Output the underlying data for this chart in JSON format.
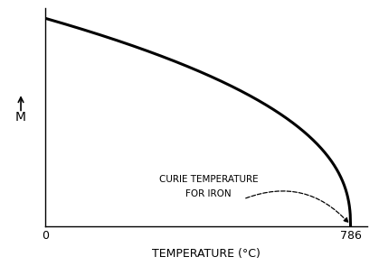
{
  "title": "",
  "xlabel": "TEMPERATURE (°C)",
  "ylabel": "M",
  "xlim": [
    0,
    830
  ],
  "ylim": [
    0,
    1.05
  ],
  "curie_temp": 786,
  "x_tick_labels": [
    "0",
    "786"
  ],
  "x_tick_positions": [
    0,
    786
  ],
  "annotation_text_line1": "CURIE TEMPERATURE",
  "annotation_text_line2": "FOR IRON",
  "line_color": "#000000",
  "dashed_color": "#000000",
  "background_color": "#ffffff",
  "curve_beta": 0.42
}
